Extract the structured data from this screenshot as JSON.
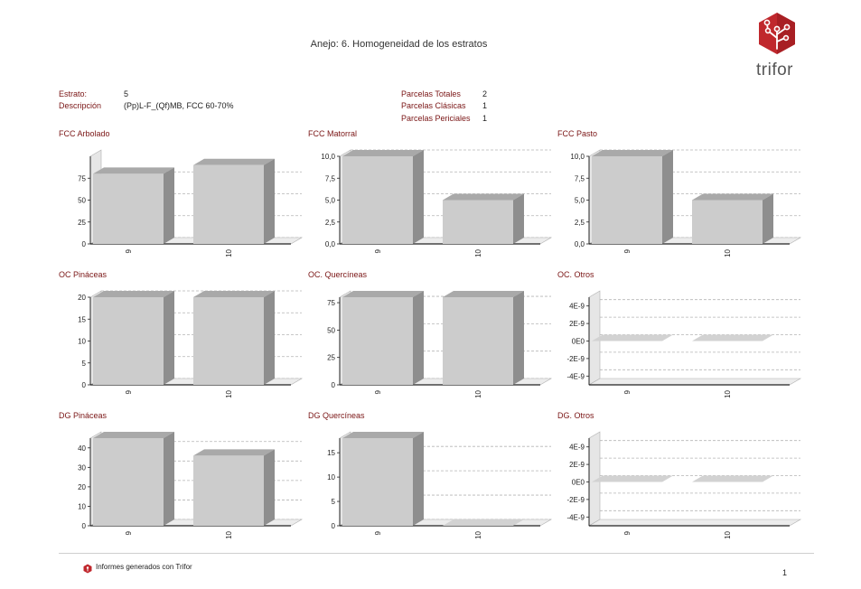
{
  "report": {
    "title": "Anejo: 6. Homogeneidad de los estratos",
    "logo_text": "trifor",
    "footer_text": "Informes generados con Trifor",
    "page_number": "1"
  },
  "info": {
    "estrato_label": "Estrato:",
    "estrato_value": "5",
    "descripcion_label": "Descripción",
    "descripcion_value": "(Pp)L-F_(Qf)MB, FCC 60-70%",
    "parcelas_totales_label": "Parcelas Totales",
    "parcelas_totales_value": "2",
    "parcelas_clasicas_label": "Parcelas Clásicas",
    "parcelas_clasicas_value": "1",
    "parcelas_periciales_label": "Parcelas Periciales",
    "parcelas_periciales_value": "1"
  },
  "colors": {
    "accent": "#7a1515",
    "bar_front": "#cccccc",
    "bar_side": "#8e8e8e",
    "bar_top": "#a9a9a9"
  },
  "chart_data": [
    {
      "type": "bar",
      "title": "FCC Arbolado",
      "categories": [
        "9",
        "10"
      ],
      "values": [
        80,
        90
      ],
      "yticks": [
        "0",
        "25",
        "50",
        "75"
      ],
      "ylim": [
        0,
        100
      ]
    },
    {
      "type": "bar",
      "title": "FCC Matorral",
      "categories": [
        "9",
        "10"
      ],
      "values": [
        10,
        5
      ],
      "yticks": [
        "0,0",
        "2,5",
        "5,0",
        "7,5",
        "10,0"
      ],
      "ylim": [
        0,
        10
      ]
    },
    {
      "type": "bar",
      "title": "FCC Pasto",
      "categories": [
        "9",
        "10"
      ],
      "values": [
        10,
        5
      ],
      "yticks": [
        "0,0",
        "2,5",
        "5,0",
        "7,5",
        "10,0"
      ],
      "ylim": [
        0,
        10
      ]
    },
    {
      "type": "bar",
      "title": "OC Pináceas",
      "categories": [
        "9",
        "10"
      ],
      "values": [
        20,
        20
      ],
      "yticks": [
        "0",
        "5",
        "10",
        "15",
        "20"
      ],
      "ylim": [
        0,
        20
      ]
    },
    {
      "type": "bar",
      "title": "OC. Quercíneas",
      "categories": [
        "9",
        "10"
      ],
      "values": [
        80,
        80
      ],
      "yticks": [
        "0",
        "25",
        "50",
        "75"
      ],
      "ylim": [
        0,
        80
      ]
    },
    {
      "type": "bar",
      "title": "OC. Otros",
      "categories": [
        "9",
        "10"
      ],
      "values": [
        0,
        0
      ],
      "yticks": [
        "-4E-9",
        "-2E-9",
        "0E0",
        "2E-9",
        "4E-9"
      ],
      "ylim": [
        -5e-09,
        5e-09
      ]
    },
    {
      "type": "bar",
      "title": "DG Pináceas",
      "categories": [
        "9",
        "10"
      ],
      "values": [
        45,
        36
      ],
      "yticks": [
        "0",
        "10",
        "20",
        "30",
        "40"
      ],
      "ylim": [
        0,
        45
      ]
    },
    {
      "type": "bar",
      "title": "DG Quercíneas",
      "categories": [
        "9",
        "10"
      ],
      "values": [
        18,
        0
      ],
      "yticks": [
        "0",
        "5",
        "10",
        "15"
      ],
      "ylim": [
        0,
        18
      ]
    },
    {
      "type": "bar",
      "title": "DG. Otros",
      "categories": [
        "9",
        "10"
      ],
      "values": [
        0,
        0
      ],
      "yticks": [
        "-4E-9",
        "-2E-9",
        "0E0",
        "2E-9",
        "4E-9"
      ],
      "ylim": [
        -5e-09,
        5e-09
      ]
    }
  ]
}
